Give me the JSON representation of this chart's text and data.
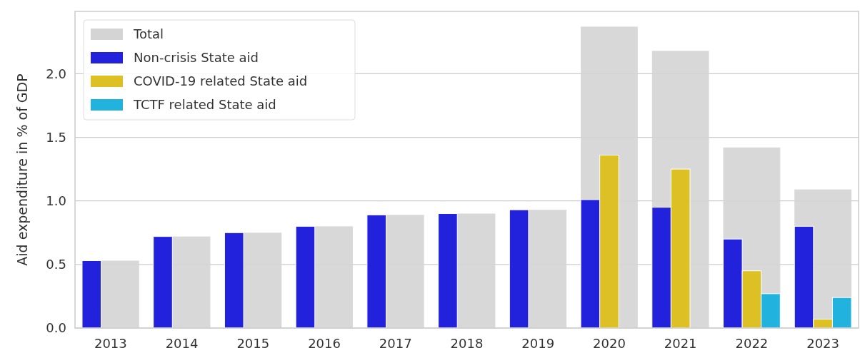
{
  "chart_data": {
    "type": "bar",
    "ylabel": "Aid expenditure in % of GDP",
    "categories": [
      "2013",
      "2014",
      "2015",
      "2016",
      "2017",
      "2018",
      "2019",
      "2020",
      "2021",
      "2022",
      "2023"
    ],
    "series": [
      {
        "name": "Total",
        "color": "#d4d4d4",
        "values": [
          0.53,
          0.72,
          0.75,
          0.8,
          0.89,
          0.9,
          0.93,
          2.37,
          2.18,
          1.42,
          1.09
        ]
      },
      {
        "name": "Non-crisis State aid",
        "color": "#2222dd",
        "values": [
          0.53,
          0.72,
          0.75,
          0.8,
          0.89,
          0.9,
          0.93,
          1.01,
          0.95,
          0.7,
          0.8
        ]
      },
      {
        "name": "COVID-19 related State aid",
        "color": "#dcc024",
        "values": [
          null,
          null,
          null,
          null,
          null,
          null,
          null,
          1.36,
          1.25,
          0.45,
          0.07
        ]
      },
      {
        "name": "TCTF related State aid",
        "color": "#22b2de",
        "values": [
          null,
          null,
          null,
          null,
          null,
          null,
          null,
          null,
          null,
          0.27,
          0.24
        ]
      }
    ],
    "ylim": [
      0,
      2.49
    ],
    "yticks": [
      {
        "value": 0,
        "label": "0.0"
      },
      {
        "value": 0.5,
        "label": "0.5"
      },
      {
        "value": 1,
        "label": "1.0"
      },
      {
        "value": 1.5,
        "label": "1.5"
      },
      {
        "value": 2,
        "label": "2.0"
      }
    ],
    "grid": "y",
    "legend": "top left"
  }
}
